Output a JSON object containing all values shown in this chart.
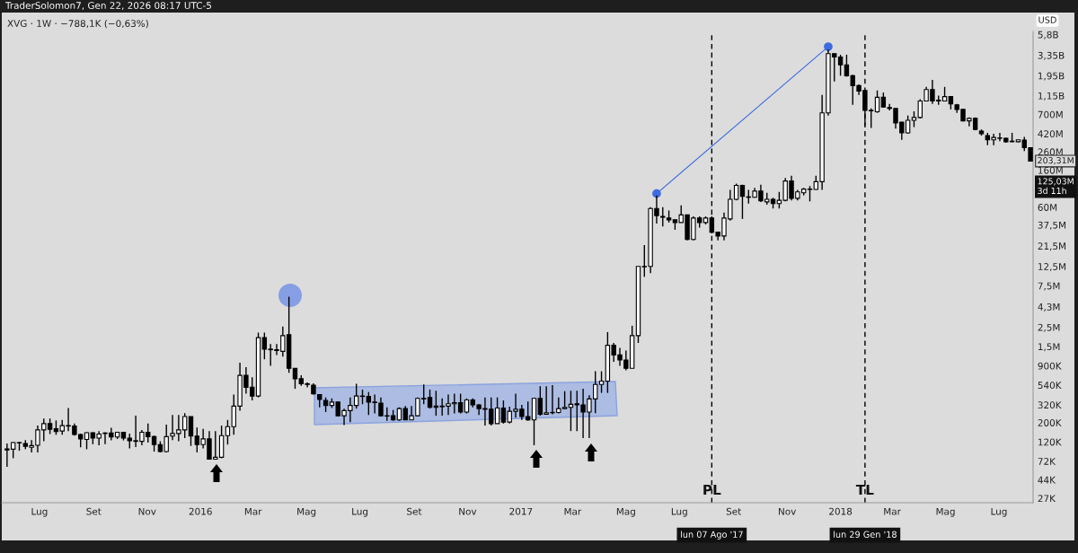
{
  "chart_data": {
    "type": "candlestick",
    "title": "XVG · 1W · −788,1K (−0,63%)",
    "ylabel": "USD",
    "color": "#000000",
    "log": true,
    "x": [
      "2015-05-25",
      "2015-06-01",
      "2015-06-08",
      "2015-06-15",
      "2015-06-22",
      "2015-06-29",
      "2015-07-06",
      "2015-07-13",
      "2015-07-20",
      "2015-07-27",
      "2015-08-03",
      "2015-08-10",
      "2015-08-17",
      "2015-08-24",
      "2015-08-31",
      "2015-09-07",
      "2015-09-14",
      "2015-09-21",
      "2015-09-28",
      "2015-10-05",
      "2015-10-12",
      "2015-10-19",
      "2015-10-26",
      "2015-11-02",
      "2015-11-09",
      "2015-11-16",
      "2015-11-23",
      "2015-11-30",
      "2015-12-07",
      "2015-12-14",
      "2015-12-21",
      "2015-12-28",
      "2016-01-04",
      "2016-01-11",
      "2016-01-18",
      "2016-01-25",
      "2016-02-01",
      "2016-02-08",
      "2016-02-15",
      "2016-02-22",
      "2016-02-29",
      "2016-03-07",
      "2016-03-14",
      "2016-03-21",
      "2016-03-28",
      "2016-04-04",
      "2016-04-11",
      "2016-04-18",
      "2016-04-25",
      "2016-05-02",
      "2016-05-09",
      "2016-05-16",
      "2016-05-23",
      "2016-05-30",
      "2016-06-06",
      "2016-06-13",
      "2016-06-20",
      "2016-06-27",
      "2016-07-04",
      "2016-07-11",
      "2016-07-18",
      "2016-07-25",
      "2016-08-01",
      "2016-08-08",
      "2016-08-15",
      "2016-08-22",
      "2016-08-29",
      "2016-09-05",
      "2016-09-12",
      "2016-09-19",
      "2016-09-26",
      "2016-10-03",
      "2016-10-10",
      "2016-10-17",
      "2016-10-24",
      "2016-10-31",
      "2016-11-07",
      "2016-11-14",
      "2016-11-21",
      "2016-11-28",
      "2016-12-05",
      "2016-12-12",
      "2016-12-19",
      "2016-12-26",
      "2017-01-02",
      "2017-01-09",
      "2017-01-16",
      "2017-01-23",
      "2017-01-30",
      "2017-02-06",
      "2017-02-13",
      "2017-02-20",
      "2017-02-27",
      "2017-03-06",
      "2017-03-13",
      "2017-03-20",
      "2017-03-27",
      "2017-04-03",
      "2017-04-10",
      "2017-04-17",
      "2017-04-24",
      "2017-05-01",
      "2017-05-08",
      "2017-05-15",
      "2017-05-22",
      "2017-05-29",
      "2017-06-05",
      "2017-06-12",
      "2017-06-19",
      "2017-06-26",
      "2017-07-03",
      "2017-07-10",
      "2017-07-17",
      "2017-07-24",
      "2017-07-31",
      "2017-08-07",
      "2017-08-14",
      "2017-08-21",
      "2017-08-28",
      "2017-09-04",
      "2017-09-11",
      "2017-09-18",
      "2017-09-25",
      "2017-10-02",
      "2017-10-09",
      "2017-10-16",
      "2017-10-23",
      "2017-10-30",
      "2017-11-06",
      "2017-11-13",
      "2017-11-20",
      "2017-11-27",
      "2017-12-04",
      "2017-12-11",
      "2017-12-18",
      "2017-12-25",
      "2018-01-01",
      "2018-01-08",
      "2018-01-15",
      "2018-01-22",
      "2018-01-29",
      "2018-02-05",
      "2018-02-12",
      "2018-02-19",
      "2018-02-26",
      "2018-03-05",
      "2018-03-12",
      "2018-03-19",
      "2018-03-26",
      "2018-04-02",
      "2018-04-09",
      "2018-04-16",
      "2018-04-23",
      "2018-04-30",
      "2018-05-07",
      "2018-05-14",
      "2018-05-21",
      "2018-05-28",
      "2018-06-04",
      "2018-06-11",
      "2018-06-18",
      "2018-06-25",
      "2018-07-02",
      "2018-07-09",
      "2018-07-16",
      "2018-07-23",
      "2018-07-30",
      "2018-08-06"
    ],
    "ohlc": [
      [
        100000,
        115000,
        62000,
        97000
      ],
      [
        99000,
        120000,
        78000,
        118000
      ],
      [
        118000,
        120000,
        95000,
        117000
      ],
      [
        115000,
        126000,
        99000,
        107000
      ],
      [
        104000,
        126000,
        91000,
        109000
      ],
      [
        110000,
        185000,
        91000,
        165000
      ],
      [
        165000,
        223000,
        122000,
        195000
      ],
      [
        195000,
        223000,
        148000,
        168000
      ],
      [
        170000,
        212000,
        145000,
        158000
      ],
      [
        160000,
        215000,
        145000,
        185000
      ],
      [
        185000,
        295000,
        160000,
        183000
      ],
      [
        183000,
        195000,
        142000,
        146000
      ],
      [
        146000,
        150000,
        104000,
        130000
      ],
      [
        128000,
        155000,
        99000,
        153000
      ],
      [
        153000,
        155000,
        113000,
        133000
      ],
      [
        133000,
        160000,
        110000,
        148000
      ],
      [
        150000,
        155000,
        113000,
        152000
      ],
      [
        152000,
        175000,
        125000,
        137000
      ],
      [
        137000,
        157000,
        130000,
        155000
      ],
      [
        155000,
        157000,
        125000,
        133000
      ],
      [
        133000,
        150000,
        101000,
        124000
      ],
      [
        124000,
        240000,
        105000,
        122000
      ],
      [
        122000,
        165000,
        110000,
        155000
      ],
      [
        155000,
        195000,
        118000,
        138000
      ],
      [
        138000,
        142000,
        93000,
        112000
      ],
      [
        112000,
        122000,
        91000,
        93000
      ],
      [
        93000,
        190000,
        91000,
        138000
      ],
      [
        140000,
        245000,
        126000,
        150000
      ],
      [
        150000,
        245000,
        122000,
        165000
      ],
      [
        165000,
        257000,
        133000,
        235000
      ],
      [
        235000,
        235000,
        108000,
        140000
      ],
      [
        140000,
        176000,
        91000,
        112000
      ],
      [
        112000,
        170000,
        101000,
        130000
      ],
      [
        130000,
        160000,
        75000,
        76000
      ],
      [
        76000,
        160000,
        75000,
        80000
      ],
      [
        80000,
        185000,
        78000,
        142000
      ],
      [
        142000,
        215000,
        112000,
        180000
      ],
      [
        180000,
        420000,
        145000,
        310000
      ],
      [
        310000,
        980000,
        275000,
        700000
      ],
      [
        700000,
        870000,
        430000,
        510000
      ],
      [
        510000,
        664000,
        360000,
        405000
      ],
      [
        405000,
        2170000,
        390000,
        1900000
      ],
      [
        1900000,
        2170000,
        1070000,
        1400000
      ],
      [
        1400000,
        1600000,
        900000,
        1380000
      ],
      [
        1380000,
        1600000,
        1200000,
        1350000
      ],
      [
        1320000,
        2550000,
        1150000,
        2000000
      ],
      [
        2050000,
        5600000,
        748000,
        842000
      ],
      [
        842000,
        842000,
        490000,
        640000
      ],
      [
        640000,
        700000,
        530000,
        560000
      ],
      [
        560000,
        580000,
        510000,
        550000
      ],
      [
        540000,
        565000,
        420000,
        430000
      ],
      [
        420000,
        425000,
        300000,
        370000
      ],
      [
        360000,
        390000,
        265000,
        315000
      ],
      [
        315000,
        380000,
        295000,
        345000
      ],
      [
        345000,
        350000,
        238000,
        240000
      ],
      [
        240000,
        290000,
        188000,
        275000
      ],
      [
        275000,
        390000,
        203000,
        315000
      ],
      [
        315000,
        560000,
        290000,
        405000
      ],
      [
        405000,
        480000,
        326000,
        400000
      ],
      [
        400000,
        450000,
        245000,
        345000
      ],
      [
        345000,
        420000,
        255000,
        340000
      ],
      [
        335000,
        390000,
        235000,
        240000
      ],
      [
        240000,
        300000,
        210000,
        238000
      ],
      [
        240000,
        280000,
        210000,
        215000
      ],
      [
        215000,
        300000,
        210000,
        290000
      ],
      [
        290000,
        310000,
        215000,
        215000
      ],
      [
        215000,
        310000,
        215000,
        240000
      ],
      [
        240000,
        390000,
        235000,
        380000
      ],
      [
        380000,
        550000,
        326000,
        375000
      ],
      [
        390000,
        480000,
        290000,
        300000
      ],
      [
        310000,
        465000,
        240000,
        300000
      ],
      [
        310000,
        380000,
        240000,
        305000
      ],
      [
        310000,
        420000,
        245000,
        330000
      ],
      [
        330000,
        430000,
        255000,
        340000
      ],
      [
        340000,
        430000,
        255000,
        265000
      ],
      [
        265000,
        380000,
        255000,
        365000
      ],
      [
        365000,
        380000,
        300000,
        320000
      ],
      [
        320000,
        325000,
        245000,
        290000
      ],
      [
        290000,
        390000,
        185000,
        285000
      ],
      [
        285000,
        390000,
        185000,
        195000
      ],
      [
        195000,
        390000,
        195000,
        295000
      ],
      [
        295000,
        360000,
        195000,
        203000
      ],
      [
        203000,
        305000,
        195000,
        270000
      ],
      [
        270000,
        430000,
        228000,
        285000
      ],
      [
        285000,
        320000,
        215000,
        235000
      ],
      [
        235000,
        350000,
        210000,
        215000
      ],
      [
        215000,
        385000,
        110000,
        380000
      ],
      [
        380000,
        525000,
        240000,
        250000
      ],
      [
        250000,
        525000,
        250000,
        260000
      ],
      [
        262000,
        540000,
        250000,
        260000
      ],
      [
        262000,
        390000,
        255000,
        290000
      ],
      [
        290000,
        460000,
        285000,
        300000
      ],
      [
        300000,
        465000,
        160000,
        325000
      ],
      [
        330000,
        465000,
        160000,
        320000
      ],
      [
        320000,
        490000,
        133000,
        265000
      ],
      [
        265000,
        413000,
        133000,
        375000
      ],
      [
        375000,
        780000,
        257000,
        550000
      ],
      [
        550000,
        780000,
        440000,
        600000
      ],
      [
        600000,
        2200000,
        440000,
        1550000
      ],
      [
        1550000,
        1650000,
        1000000,
        1200000
      ],
      [
        1200000,
        1450000,
        900000,
        1050000
      ],
      [
        1050000,
        1350000,
        800000,
        842000
      ],
      [
        842000,
        2600000,
        842000,
        2000000
      ],
      [
        2000000,
        12500000,
        1650000,
        12500000
      ],
      [
        12500000,
        22000000,
        9500000,
        12400000
      ],
      [
        12500000,
        60000000,
        10500000,
        58000000
      ],
      [
        58000000,
        82000000,
        39000000,
        48000000
      ],
      [
        47000000,
        60000000,
        36000000,
        46000000
      ],
      [
        45000000,
        55000000,
        40000000,
        43000000
      ],
      [
        43000000,
        43000000,
        33000000,
        40000000
      ],
      [
        40000000,
        63000000,
        40000000,
        49000000
      ],
      [
        49000000,
        49000000,
        25000000,
        25500000
      ],
      [
        25500000,
        47000000,
        25000000,
        45000000
      ],
      [
        45000000,
        47000000,
        35000000,
        40000000
      ],
      [
        40000000,
        47000000,
        38000000,
        45000000
      ],
      [
        45000000,
        47000000,
        30000000,
        31000000
      ],
      [
        31000000,
        31000000,
        25000000,
        28000000
      ],
      [
        28000000,
        52000000,
        25000000,
        45000000
      ],
      [
        44000000,
        95000000,
        42000000,
        74000000
      ],
      [
        74000000,
        112000000,
        72000000,
        107000000
      ],
      [
        107000000,
        109000000,
        44000000,
        80000000
      ],
      [
        79000000,
        95000000,
        66000000,
        78000000
      ],
      [
        78000000,
        100000000,
        77000000,
        92000000
      ],
      [
        92000000,
        109000000,
        69000000,
        71000000
      ],
      [
        69000000,
        88000000,
        64000000,
        74000000
      ],
      [
        74000000,
        77000000,
        58000000,
        66000000
      ],
      [
        66000000,
        90000000,
        58000000,
        72000000
      ],
      [
        72000000,
        130000000,
        70000000,
        120000000
      ],
      [
        120000000,
        138000000,
        72000000,
        76000000
      ],
      [
        76000000,
        95000000,
        72000000,
        90000000
      ],
      [
        88000000,
        100000000,
        82000000,
        97000000
      ],
      [
        97000000,
        105000000,
        70000000,
        96000000
      ],
      [
        96000000,
        138000000,
        95000000,
        118000000
      ],
      [
        118000000,
        1170000000,
        95000000,
        728000000
      ],
      [
        728000000,
        3900000000,
        680000000,
        3500000000
      ],
      [
        3500000000,
        3500000000,
        1670000000,
        3200000000
      ],
      [
        3200000000,
        3400000000,
        1950000000,
        2600000000
      ],
      [
        2600000000,
        3400000000,
        1900000000,
        1950000000
      ],
      [
        1950000000,
        2000000000,
        900000000,
        1500000000
      ],
      [
        1500000000,
        1550000000,
        1170000000,
        1300000000
      ],
      [
        1320000000,
        1320000000,
        520000000,
        780000000
      ],
      [
        780000000,
        820000000,
        490000000,
        770000000
      ],
      [
        750000000,
        1320000000,
        730000000,
        1100000000
      ],
      [
        1100000000,
        1250000000,
        840000000,
        850000000
      ],
      [
        840000000,
        923000000,
        780000000,
        820000000
      ],
      [
        820000000,
        820000000,
        480000000,
        560000000
      ],
      [
        570000000,
        574000000,
        357000000,
        430000000
      ],
      [
        430000000,
        680000000,
        420000000,
        600000000
      ],
      [
        600000000,
        760000000,
        500000000,
        646000000
      ],
      [
        646000000,
        1050000000,
        630000000,
        1000000000
      ],
      [
        1000000000,
        1450000000,
        990000000,
        1350000000
      ],
      [
        1350000000,
        1750000000,
        923000000,
        1000000000
      ],
      [
        1020000000,
        1150000000,
        900000000,
        1000000000
      ],
      [
        1000000000,
        1450000000,
        990000000,
        1120000000
      ],
      [
        1120000000,
        1120000000,
        800000000,
        923000000
      ],
      [
        900000000,
        923000000,
        728000000,
        800000000
      ],
      [
        800000000,
        800000000,
        580000000,
        590000000
      ],
      [
        590000000,
        646000000,
        510000000,
        630000000
      ],
      [
        630000000,
        646000000,
        460000000,
        470000000
      ],
      [
        450000000,
        470000000,
        400000000,
        420000000
      ],
      [
        400000000,
        430000000,
        310000000,
        357000000
      ],
      [
        357000000,
        420000000,
        310000000,
        380000000
      ],
      [
        375000000,
        430000000,
        345000000,
        372000000
      ],
      [
        372000000,
        380000000,
        330000000,
        340000000
      ],
      [
        345000000,
        430000000,
        335000000,
        340000000
      ],
      [
        340000000,
        360000000,
        335000000,
        357000000
      ],
      [
        355000000,
        385000000,
        265000000,
        290000000
      ],
      [
        290000000,
        290000000,
        203310000,
        203310000
      ]
    ],
    "series": [
      {
        "type": "line",
        "x": [
          "2017-06-05",
          "2017-12-18"
        ],
        "values": [
          86000000,
          4200000000
        ],
        "color": "#3d6be0",
        "marker": "circle"
      }
    ],
    "xlim": [
      "2015-05-19",
      "2018-08-09"
    ],
    "xticks": [
      {
        "value": "2015-07-01",
        "label": "Lug"
      },
      {
        "value": "2015-09-01",
        "label": "Set"
      },
      {
        "value": "2015-11-01",
        "label": "Nov"
      },
      {
        "value": "2016-01-01",
        "label": "2016"
      },
      {
        "value": "2016-03-01",
        "label": "Mar"
      },
      {
        "value": "2016-05-01",
        "label": "Mag"
      },
      {
        "value": "2016-07-01",
        "label": "Lug"
      },
      {
        "value": "2016-09-01",
        "label": "Set"
      },
      {
        "value": "2016-11-01",
        "label": "Nov"
      },
      {
        "value": "2017-01-01",
        "label": "2017"
      },
      {
        "value": "2017-03-01",
        "label": "Mar"
      },
      {
        "value": "2017-05-01",
        "label": "Mag"
      },
      {
        "value": "2017-07-01",
        "label": "Lug"
      },
      {
        "value": "2017-09-01",
        "label": "Set"
      },
      {
        "value": "2017-11-01",
        "label": "Nov"
      },
      {
        "value": "2018-01-01",
        "label": "2018"
      },
      {
        "value": "2018-03-01",
        "label": "Mar"
      },
      {
        "value": "2018-05-01",
        "label": "Mag"
      },
      {
        "value": "2018-07-01",
        "label": "Lug"
      }
    ],
    "ylim": [
      24000,
      6300000000
    ],
    "yticks": [
      {
        "value": 27000,
        "label": "27K"
      },
      {
        "value": 44000,
        "label": "44K"
      },
      {
        "value": 72000,
        "label": "72K"
      },
      {
        "value": 120000,
        "label": "120K"
      },
      {
        "value": 200000,
        "label": "200K"
      },
      {
        "value": 320000,
        "label": "320K"
      },
      {
        "value": 540000,
        "label": "540K"
      },
      {
        "value": 900000,
        "label": "900K"
      },
      {
        "value": 1500000,
        "label": "1,5M"
      },
      {
        "value": 2500000,
        "label": "2,5M"
      },
      {
        "value": 4300000,
        "label": "4,3M"
      },
      {
        "value": 7500000,
        "label": "7,5M"
      },
      {
        "value": 12500000,
        "label": "12,5M"
      },
      {
        "value": 21500000,
        "label": "21,5M"
      },
      {
        "value": 37500000,
        "label": "37,5M"
      },
      {
        "value": 60000000,
        "label": "60M"
      },
      {
        "value": 160000000,
        "label": "160M"
      },
      {
        "value": 260000000,
        "label": "260M"
      },
      {
        "value": 420000000,
        "label": "420M"
      },
      {
        "value": 700000000,
        "label": "700M"
      },
      {
        "value": 1150000000,
        "label": "1,15B"
      },
      {
        "value": 1950000000,
        "label": "1,95B"
      },
      {
        "value": 3350000000,
        "label": "3,35B"
      },
      {
        "value": 5800000000,
        "label": "5,8B"
      }
    ],
    "ref_lines": [
      {
        "axis": "x",
        "value": "2017-08-07",
        "label": "PL",
        "color": "#000000",
        "line_style": "dashed"
      },
      {
        "axis": "x",
        "value": "2018-01-29",
        "label": "TL",
        "color": "#000000",
        "line_style": "dashed"
      }
    ],
    "annotations": [
      "TraderSolomon7, Gen 22, 2026 08:17 UTC-5",
      "lun 07 Ago '17",
      "lun 29 Gen '18",
      {
        "text": "203,31M",
        "x": "2018-08-06",
        "y": 203310000
      },
      "125,03M\n3d 11h"
    ]
  }
}
